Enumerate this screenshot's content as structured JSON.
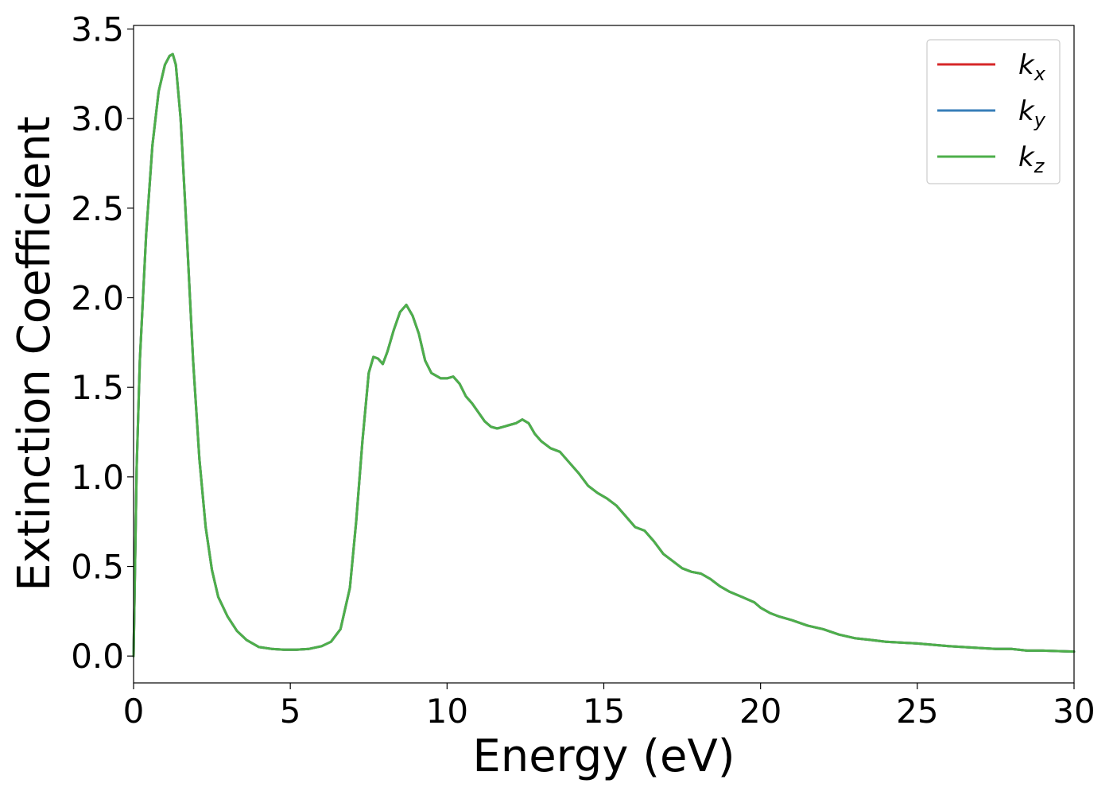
{
  "chart_data": {
    "type": "line",
    "xlabel": "Energy (eV)",
    "ylabel": "Extinction Coefficient",
    "xlim": [
      0,
      30
    ],
    "ylim": [
      -0.15,
      3.52
    ],
    "xticks": [
      0,
      5,
      10,
      15,
      20,
      25,
      30
    ],
    "xtick_labels": [
      "0",
      "5",
      "10",
      "15",
      "20",
      "25",
      "30"
    ],
    "yticks": [
      0.0,
      0.5,
      1.0,
      1.5,
      2.0,
      2.5,
      3.0,
      3.5
    ],
    "ytick_labels": [
      "0.0",
      "0.5",
      "1.0",
      "1.5",
      "2.0",
      "2.5",
      "3.0",
      "3.5"
    ],
    "grid": false,
    "legend_position": "top-right",
    "x": [
      0,
      0.1,
      0.2,
      0.4,
      0.6,
      0.8,
      1.0,
      1.15,
      1.25,
      1.35,
      1.5,
      1.7,
      1.9,
      2.1,
      2.3,
      2.5,
      2.7,
      3.0,
      3.3,
      3.6,
      4.0,
      4.4,
      4.8,
      5.2,
      5.6,
      6.0,
      6.3,
      6.6,
      6.9,
      7.1,
      7.3,
      7.5,
      7.65,
      7.8,
      7.95,
      8.1,
      8.3,
      8.5,
      8.7,
      8.9,
      9.1,
      9.3,
      9.5,
      9.8,
      10.0,
      10.2,
      10.4,
      10.6,
      10.8,
      11.0,
      11.2,
      11.4,
      11.6,
      11.8,
      12.0,
      12.2,
      12.4,
      12.6,
      12.8,
      13.0,
      13.3,
      13.6,
      13.9,
      14.2,
      14.5,
      14.8,
      15.1,
      15.4,
      15.7,
      16.0,
      16.3,
      16.6,
      16.9,
      17.2,
      17.5,
      17.8,
      18.1,
      18.4,
      18.7,
      19.0,
      19.4,
      19.8,
      20.0,
      20.3,
      20.6,
      21.0,
      21.5,
      22.0,
      22.5,
      23.0,
      23.5,
      24.0,
      25.0,
      26.0,
      27.0,
      27.5,
      28.0,
      28.5,
      29.0,
      30.0
    ],
    "series": [
      {
        "name": "k_x",
        "color": "#d62728",
        "y": [
          0.0,
          1.05,
          1.65,
          2.35,
          2.85,
          3.15,
          3.3,
          3.35,
          3.36,
          3.3,
          3.0,
          2.35,
          1.65,
          1.1,
          0.72,
          0.48,
          0.33,
          0.22,
          0.14,
          0.09,
          0.05,
          0.04,
          0.035,
          0.035,
          0.04,
          0.055,
          0.08,
          0.15,
          0.38,
          0.75,
          1.2,
          1.58,
          1.67,
          1.66,
          1.63,
          1.7,
          1.82,
          1.92,
          1.96,
          1.9,
          1.8,
          1.65,
          1.58,
          1.55,
          1.55,
          1.56,
          1.52,
          1.45,
          1.41,
          1.36,
          1.31,
          1.28,
          1.27,
          1.28,
          1.29,
          1.3,
          1.32,
          1.3,
          1.24,
          1.2,
          1.16,
          1.14,
          1.08,
          1.02,
          0.95,
          0.91,
          0.88,
          0.84,
          0.78,
          0.72,
          0.7,
          0.64,
          0.57,
          0.53,
          0.49,
          0.47,
          0.46,
          0.43,
          0.39,
          0.36,
          0.33,
          0.3,
          0.27,
          0.24,
          0.22,
          0.2,
          0.17,
          0.15,
          0.12,
          0.1,
          0.09,
          0.08,
          0.07,
          0.055,
          0.045,
          0.04,
          0.04,
          0.03,
          0.03,
          0.025
        ]
      },
      {
        "name": "k_y",
        "color": "#377eb8",
        "y": [
          0.0,
          1.05,
          1.65,
          2.35,
          2.85,
          3.15,
          3.3,
          3.35,
          3.36,
          3.3,
          3.0,
          2.35,
          1.65,
          1.1,
          0.72,
          0.48,
          0.33,
          0.22,
          0.14,
          0.09,
          0.05,
          0.04,
          0.035,
          0.035,
          0.04,
          0.055,
          0.08,
          0.15,
          0.38,
          0.75,
          1.2,
          1.58,
          1.67,
          1.66,
          1.63,
          1.7,
          1.82,
          1.92,
          1.96,
          1.9,
          1.8,
          1.65,
          1.58,
          1.55,
          1.55,
          1.56,
          1.52,
          1.45,
          1.41,
          1.36,
          1.31,
          1.28,
          1.27,
          1.28,
          1.29,
          1.3,
          1.32,
          1.3,
          1.24,
          1.2,
          1.16,
          1.14,
          1.08,
          1.02,
          0.95,
          0.91,
          0.88,
          0.84,
          0.78,
          0.72,
          0.7,
          0.64,
          0.57,
          0.53,
          0.49,
          0.47,
          0.46,
          0.43,
          0.39,
          0.36,
          0.33,
          0.3,
          0.27,
          0.24,
          0.22,
          0.2,
          0.17,
          0.15,
          0.12,
          0.1,
          0.09,
          0.08,
          0.07,
          0.055,
          0.045,
          0.04,
          0.04,
          0.03,
          0.03,
          0.025
        ]
      },
      {
        "name": "k_z",
        "color": "#4daf4a",
        "y": [
          0.0,
          1.05,
          1.65,
          2.35,
          2.85,
          3.15,
          3.3,
          3.35,
          3.36,
          3.3,
          3.0,
          2.35,
          1.65,
          1.1,
          0.72,
          0.48,
          0.33,
          0.22,
          0.14,
          0.09,
          0.05,
          0.04,
          0.035,
          0.035,
          0.04,
          0.055,
          0.08,
          0.15,
          0.38,
          0.75,
          1.2,
          1.58,
          1.67,
          1.66,
          1.63,
          1.7,
          1.82,
          1.92,
          1.96,
          1.9,
          1.8,
          1.65,
          1.58,
          1.55,
          1.55,
          1.56,
          1.52,
          1.45,
          1.41,
          1.36,
          1.31,
          1.28,
          1.27,
          1.28,
          1.29,
          1.3,
          1.32,
          1.3,
          1.24,
          1.2,
          1.16,
          1.14,
          1.08,
          1.02,
          0.95,
          0.91,
          0.88,
          0.84,
          0.78,
          0.72,
          0.7,
          0.64,
          0.57,
          0.53,
          0.49,
          0.47,
          0.46,
          0.43,
          0.39,
          0.36,
          0.33,
          0.3,
          0.27,
          0.24,
          0.22,
          0.2,
          0.17,
          0.15,
          0.12,
          0.1,
          0.09,
          0.08,
          0.07,
          0.055,
          0.045,
          0.04,
          0.04,
          0.03,
          0.03,
          0.025
        ]
      }
    ],
    "legend": [
      {
        "base": "k",
        "sub": "x"
      },
      {
        "base": "k",
        "sub": "y"
      },
      {
        "base": "k",
        "sub": "z"
      }
    ]
  }
}
